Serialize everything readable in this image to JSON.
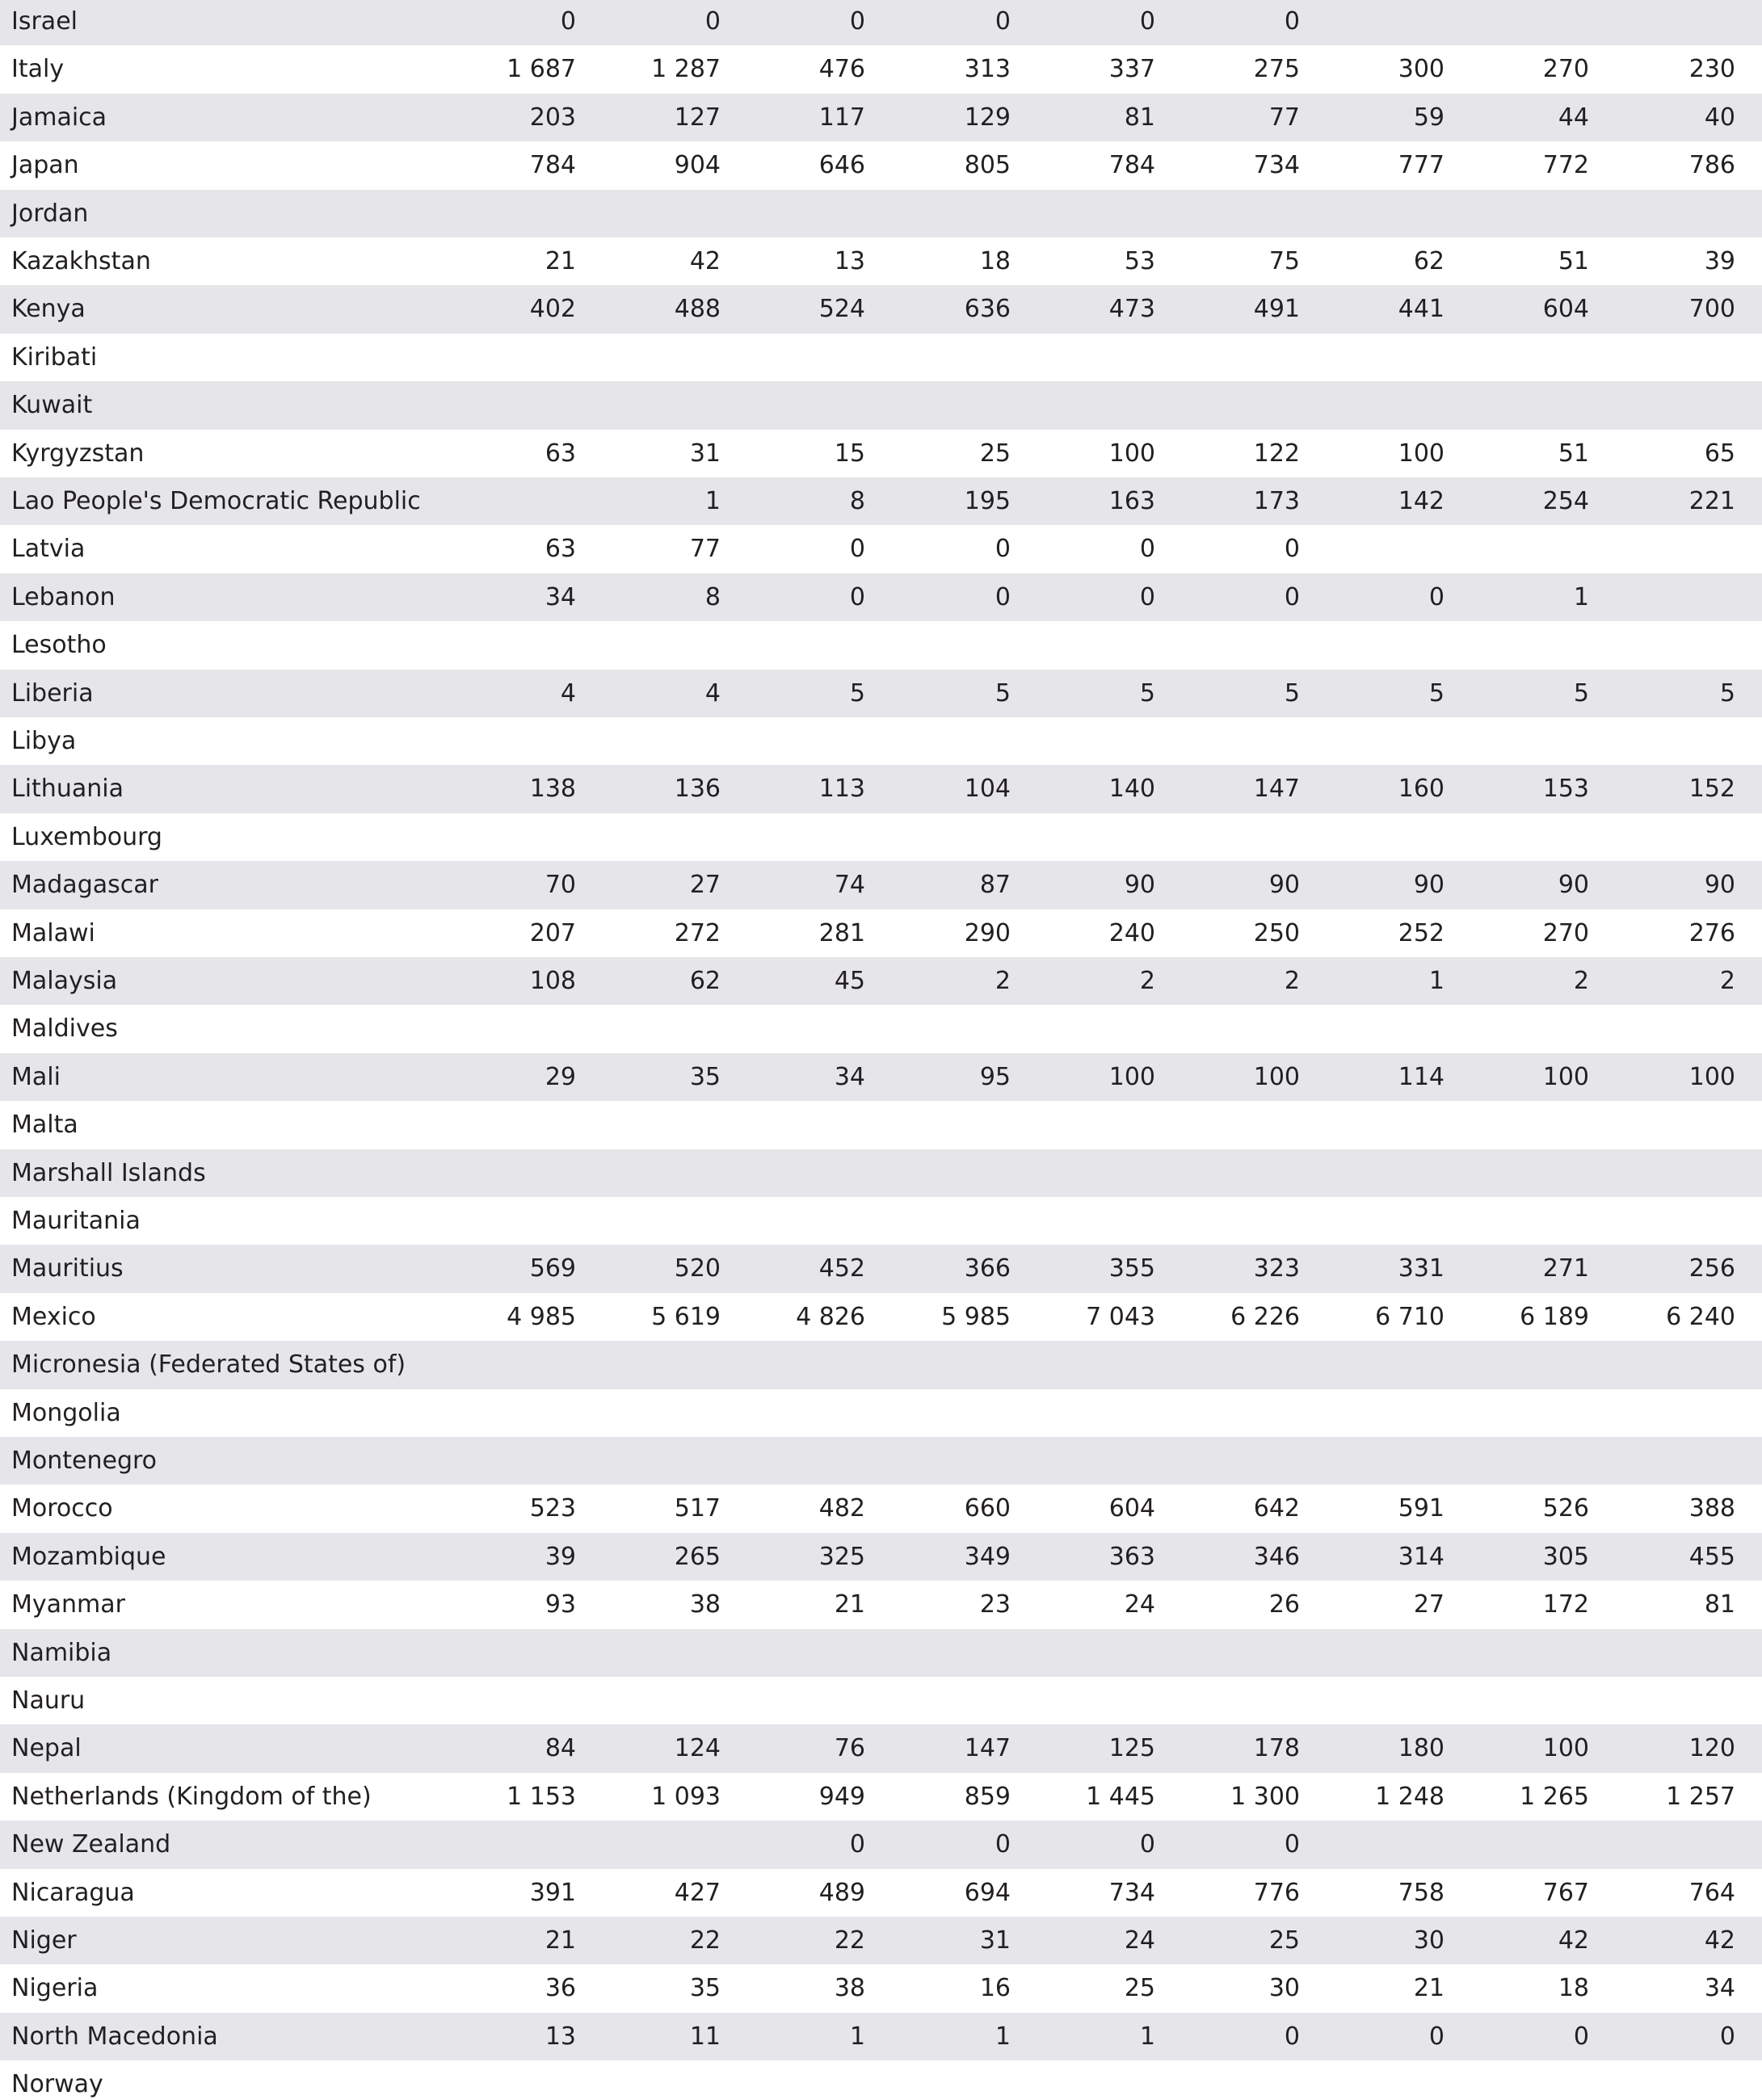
{
  "table": {
    "rows": [
      {
        "name": "Israel",
        "values": [
          0,
          0,
          0,
          0,
          0,
          0,
          null,
          null,
          null
        ]
      },
      {
        "name": "Italy",
        "values": [
          "1 687",
          "1 287",
          476,
          313,
          337,
          275,
          300,
          270,
          230
        ]
      },
      {
        "name": "Jamaica",
        "values": [
          203,
          127,
          117,
          129,
          81,
          77,
          59,
          44,
          40
        ]
      },
      {
        "name": "Japan",
        "values": [
          784,
          904,
          646,
          805,
          784,
          734,
          777,
          772,
          786
        ]
      },
      {
        "name": "Jordan"
      },
      {
        "name": "Kazakhstan",
        "values": [
          21,
          42,
          13,
          18,
          53,
          75,
          62,
          51,
          39
        ]
      },
      {
        "name": "Kenya",
        "values": [
          402,
          488,
          524,
          636,
          473,
          491,
          441,
          604,
          700
        ]
      },
      {
        "name": "Kiribati"
      },
      {
        "name": "Kuwait"
      },
      {
        "name": "Kyrgyzstan",
        "values": [
          63,
          31,
          15,
          25,
          100,
          122,
          100,
          51,
          65
        ]
      },
      {
        "name": "Lao People's Democratic Republic",
        "values": [
          null,
          1,
          8,
          195,
          163,
          173,
          142,
          254,
          221
        ]
      },
      {
        "name": "Latvia",
        "values": [
          63,
          77,
          0,
          0,
          0,
          0,
          null,
          null,
          null
        ]
      },
      {
        "name": "Lebanon",
        "values": [
          34,
          8,
          0,
          0,
          0,
          0,
          0,
          1,
          null
        ]
      },
      {
        "name": "Lesotho"
      },
      {
        "name": "Liberia",
        "values": [
          4,
          4,
          5,
          5,
          5,
          5,
          5,
          5,
          5
        ]
      },
      {
        "name": "Libya"
      },
      {
        "name": "Lithuania",
        "values": [
          138,
          136,
          113,
          104,
          140,
          147,
          160,
          153,
          152
        ]
      },
      {
        "name": "Luxembourg"
      },
      {
        "name": "Madagascar",
        "values": [
          70,
          27,
          74,
          87,
          90,
          90,
          90,
          90,
          90
        ]
      },
      {
        "name": "Malawi",
        "values": [
          207,
          272,
          281,
          290,
          240,
          250,
          252,
          270,
          276
        ]
      },
      {
        "name": "Malaysia",
        "values": [
          108,
          62,
          45,
          2,
          2,
          2,
          1,
          2,
          2
        ]
      },
      {
        "name": "Maldives"
      },
      {
        "name": "Mali",
        "values": [
          29,
          35,
          34,
          95,
          100,
          100,
          114,
          100,
          100
        ]
      },
      {
        "name": "Malta"
      },
      {
        "name": "Marshall Islands"
      },
      {
        "name": "Mauritania"
      },
      {
        "name": "Mauritius",
        "values": [
          569,
          520,
          452,
          366,
          355,
          323,
          331,
          271,
          256
        ]
      },
      {
        "name": "Mexico",
        "values": [
          "4 985",
          "5 619",
          "4 826",
          "5 985",
          "7 043",
          "6 226",
          "6 710",
          "6 189",
          "6 240"
        ]
      },
      {
        "name": "Micronesia (Federated States of)"
      },
      {
        "name": "Mongolia"
      },
      {
        "name": "Montenegro"
      },
      {
        "name": "Morocco",
        "values": [
          523,
          517,
          482,
          660,
          604,
          642,
          591,
          526,
          388
        ]
      },
      {
        "name": "Mozambique",
        "values": [
          39,
          265,
          325,
          349,
          363,
          346,
          314,
          305,
          455
        ]
      },
      {
        "name": "Myanmar",
        "values": [
          93,
          38,
          21,
          23,
          24,
          26,
          27,
          172,
          81
        ]
      },
      {
        "name": "Namibia"
      },
      {
        "name": "Nauru"
      },
      {
        "name": "Nepal",
        "values": [
          84,
          124,
          76,
          147,
          125,
          178,
          180,
          100,
          120
        ]
      },
      {
        "name": "Netherlands (Kingdom of the)",
        "values": [
          "1 153",
          "1 093",
          949,
          859,
          "1 445",
          "1 300",
          "1 248",
          "1 265",
          "1 257"
        ]
      },
      {
        "name": "New Zealand",
        "values": [
          null,
          null,
          0,
          0,
          0,
          0,
          null,
          null,
          null
        ]
      },
      {
        "name": "Nicaragua",
        "values": [
          391,
          427,
          489,
          694,
          734,
          776,
          758,
          767,
          764
        ]
      },
      {
        "name": "Niger",
        "values": [
          21,
          22,
          22,
          31,
          24,
          25,
          30,
          42,
          42
        ]
      },
      {
        "name": "Nigeria",
        "values": [
          36,
          35,
          38,
          16,
          25,
          30,
          21,
          18,
          34
        ]
      },
      {
        "name": "North Macedonia",
        "values": [
          13,
          11,
          1,
          1,
          1,
          0,
          0,
          0,
          0
        ]
      },
      {
        "name": "Norway"
      }
    ]
  }
}
